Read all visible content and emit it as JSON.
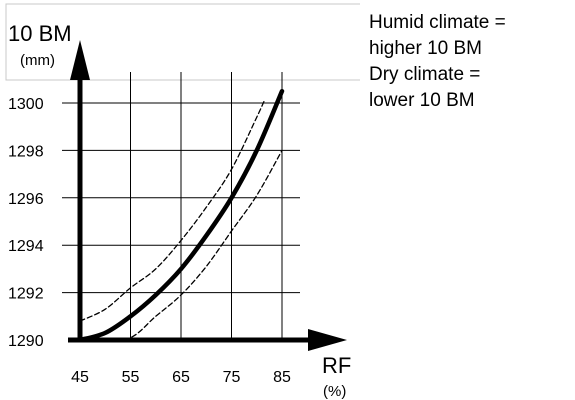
{
  "chart_data": {
    "type": "line",
    "xlabel": "RF",
    "xunit": "(%)",
    "ylabel": "10 BM",
    "yunit": "(mm)",
    "x_ticks": [
      45,
      55,
      65,
      75,
      85
    ],
    "y_ticks": [
      1290,
      1292,
      1294,
      1296,
      1298,
      1300
    ],
    "xlim": [
      45,
      85
    ],
    "ylim": [
      1290,
      1300
    ],
    "grid": true,
    "series": [
      {
        "role": "main",
        "style": "solid-thick",
        "x": [
          45,
          50,
          55,
          60,
          65,
          70,
          75,
          80,
          85
        ],
        "y": [
          1290.0,
          1290.3,
          1291.0,
          1291.9,
          1293.0,
          1294.4,
          1296.0,
          1298.0,
          1300.5
        ]
      },
      {
        "role": "upper-bound",
        "style": "dashed",
        "x": [
          45,
          50,
          55,
          60,
          65,
          70,
          75,
          80,
          81.5
        ],
        "y": [
          1290.8,
          1291.3,
          1292.2,
          1293.0,
          1294.2,
          1295.6,
          1297.2,
          1299.4,
          1300.1
        ]
      },
      {
        "role": "lower-bound",
        "style": "dashed",
        "x": [
          49,
          55,
          60,
          65,
          70,
          75,
          80,
          85
        ],
        "y": [
          1290.0,
          1290.1,
          1291.0,
          1291.9,
          1293.1,
          1294.6,
          1296.1,
          1298.0
        ]
      }
    ],
    "annotation": [
      "Humid climate =",
      "higher 10 BM",
      "Dry climate =",
      "lower 10 BM"
    ]
  }
}
